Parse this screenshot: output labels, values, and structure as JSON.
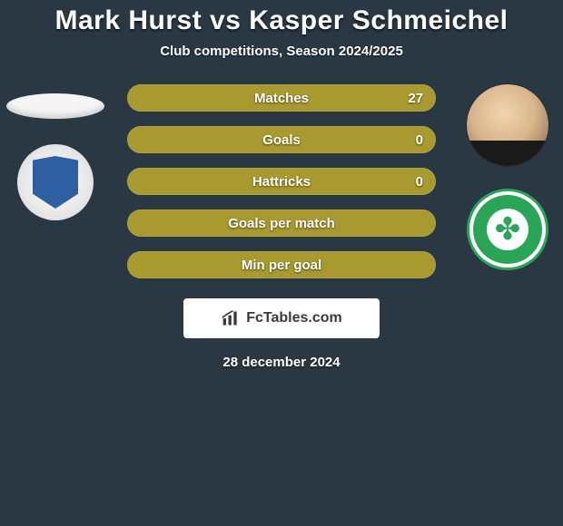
{
  "background_color": "#2a3844",
  "title": {
    "text": "Mark Hurst vs Kasper Schmeichel",
    "fontsize": 30,
    "color": "#ffffff"
  },
  "subtitle": {
    "text": "Club competitions, Season 2024/2025",
    "fontsize": 15,
    "color": "#ffffff"
  },
  "left": {
    "player_name": "Mark Hurst",
    "has_photo": false,
    "club_name": "St. Johnstone",
    "club_badge_style": "sj"
  },
  "right": {
    "player_name": "Kasper Schmeichel",
    "has_photo": true,
    "club_name": "Celtic",
    "club_badge_style": "cel"
  },
  "stats": {
    "bar_bg": "#a89a2f",
    "bar_label_color": "#ffffff",
    "bar_label_fontsize": 15,
    "value_fontsize": 15,
    "rows": [
      {
        "label": "Matches",
        "left": "",
        "right": "27",
        "left_fill": 0,
        "right_fill": 1.0
      },
      {
        "label": "Goals",
        "left": "",
        "right": "0",
        "left_fill": 0,
        "right_fill": 1.0
      },
      {
        "label": "Hattricks",
        "left": "",
        "right": "0",
        "left_fill": 0,
        "right_fill": 1.0
      },
      {
        "label": "Goals per match",
        "left": "",
        "right": "",
        "left_fill": 0,
        "right_fill": 1.0
      },
      {
        "label": "Min per goal",
        "left": "",
        "right": "",
        "left_fill": 0,
        "right_fill": 1.0
      }
    ]
  },
  "branding": {
    "text": "FcTables.com",
    "fontsize": 16,
    "bg": "#ffffff",
    "color": "#3a3a3a"
  },
  "date": {
    "text": "28 december 2024",
    "fontsize": 15,
    "color": "#ffffff"
  }
}
